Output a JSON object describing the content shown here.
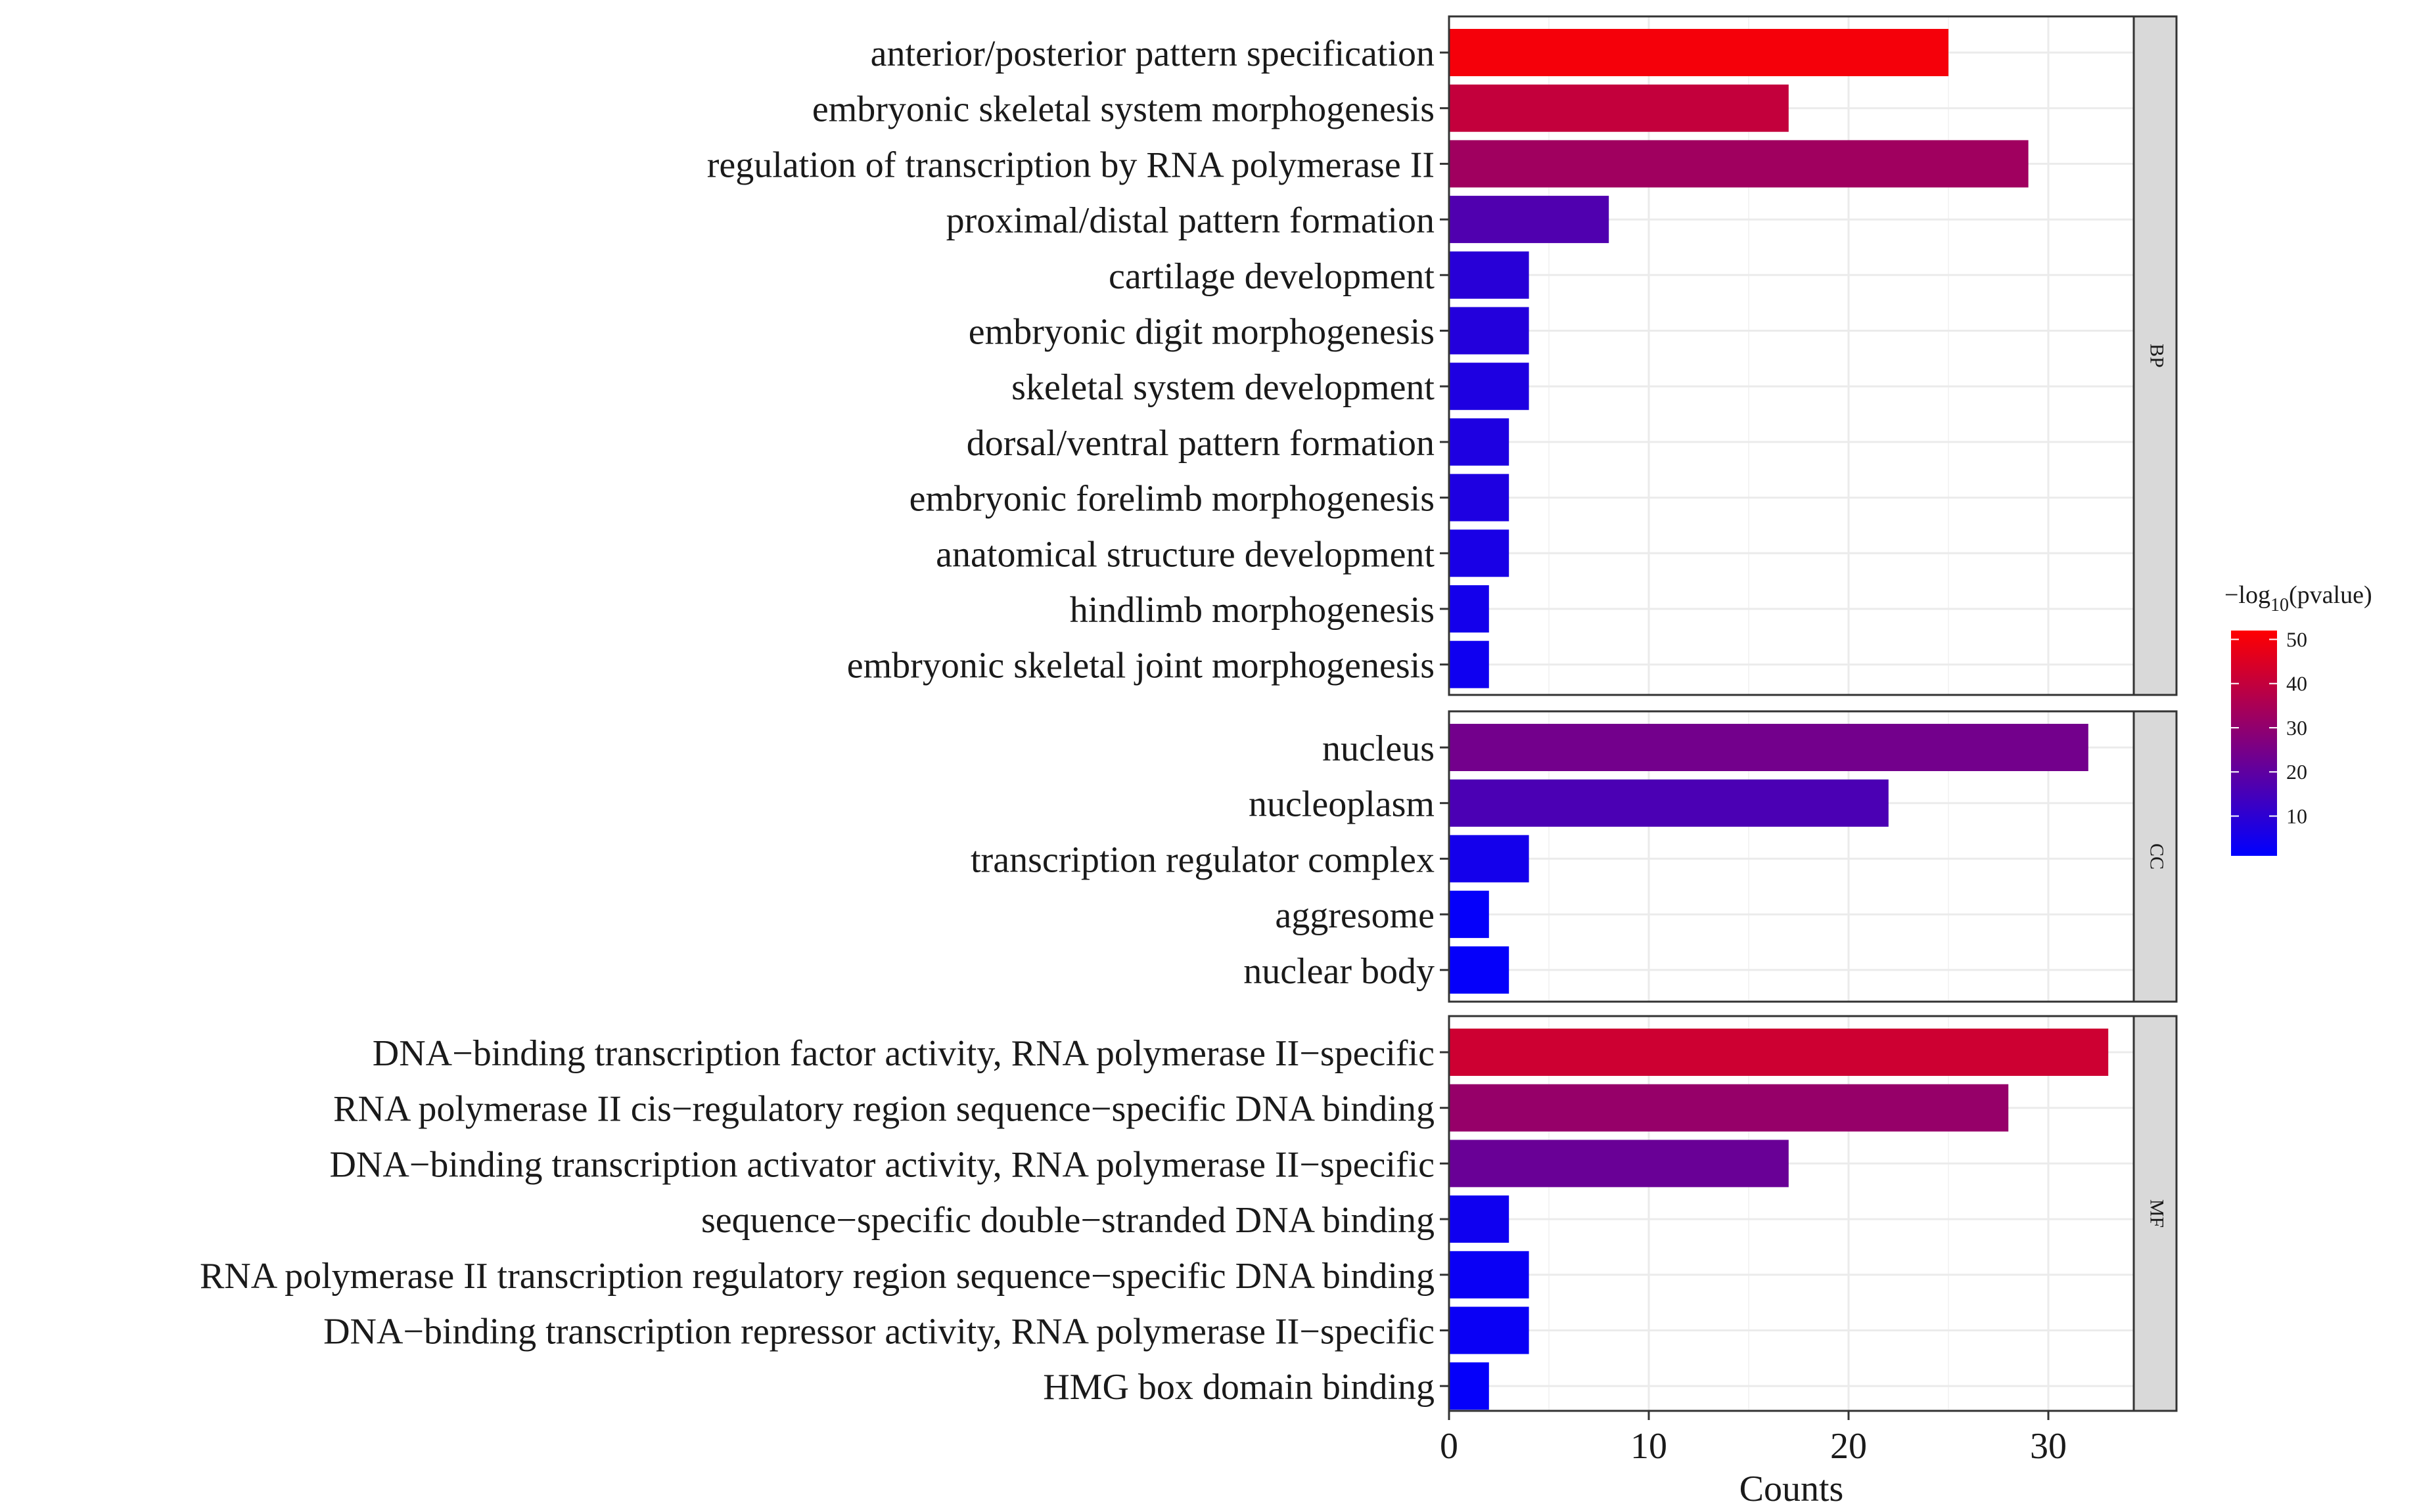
{
  "chart_data": {
    "type": "bar",
    "orientation": "horizontal",
    "xlabel": "Counts",
    "xlim": [
      0,
      35
    ],
    "x_ticks": [
      0,
      10,
      20,
      30
    ],
    "grid": true,
    "legend": {
      "title_prefix": "−log",
      "title_sub": "10",
      "title_suffix": "(pvalue)",
      "ticks": [
        10,
        20,
        30,
        40,
        50
      ],
      "range": [
        1,
        52
      ],
      "colors": [
        "#0000ff",
        "#ff0000"
      ],
      "position": "right"
    },
    "facets": [
      {
        "name": "BP",
        "terms": [
          {
            "term": "anterior/posterior pattern specification",
            "count": 25,
            "pvalue": 50
          },
          {
            "term": "embryonic skeletal system morphogenesis",
            "count": 17,
            "pvalue": 40
          },
          {
            "term": "regulation of transcription by RNA polymerase II",
            "count": 29,
            "pvalue": 33
          },
          {
            "term": "proximal/distal pattern formation",
            "count": 8,
            "pvalue": 17
          },
          {
            "term": "cartilage development",
            "count": 4,
            "pvalue": 9
          },
          {
            "term": "embryonic digit morphogenesis",
            "count": 4,
            "pvalue": 8
          },
          {
            "term": "skeletal system development",
            "count": 4,
            "pvalue": 7
          },
          {
            "term": "dorsal/ventral pattern formation",
            "count": 3,
            "pvalue": 7
          },
          {
            "term": "embryonic forelimb morphogenesis",
            "count": 3,
            "pvalue": 7
          },
          {
            "term": "anatomical structure development",
            "count": 3,
            "pvalue": 6
          },
          {
            "term": "hindlimb morphogenesis",
            "count": 2,
            "pvalue": 5
          },
          {
            "term": "embryonic skeletal joint morphogenesis",
            "count": 2,
            "pvalue": 4
          }
        ]
      },
      {
        "name": "CC",
        "terms": [
          {
            "term": "nucleus",
            "count": 32,
            "pvalue": 24
          },
          {
            "term": "nucleoplasm",
            "count": 22,
            "pvalue": 16
          },
          {
            "term": "transcription regulator complex",
            "count": 4,
            "pvalue": 5
          },
          {
            "term": "aggresome",
            "count": 2,
            "pvalue": 2
          },
          {
            "term": "nuclear body",
            "count": 3,
            "pvalue": 2
          }
        ]
      },
      {
        "name": "MF",
        "terms": [
          {
            "term": "DNA−binding transcription factor activity, RNA polymerase II−specific",
            "count": 33,
            "pvalue": 42
          },
          {
            "term": "RNA polymerase II cis−regulatory region sequence−specific DNA binding",
            "count": 28,
            "pvalue": 31
          },
          {
            "term": "DNA−binding transcription activator activity, RNA polymerase II−specific",
            "count": 17,
            "pvalue": 22
          },
          {
            "term": "sequence−specific double−stranded DNA binding",
            "count": 3,
            "pvalue": 4
          },
          {
            "term": "RNA polymerase II transcription regulatory region sequence−specific DNA binding",
            "count": 4,
            "pvalue": 3
          },
          {
            "term": "DNA−binding transcription repressor activity, RNA polymerase II−specific",
            "count": 4,
            "pvalue": 3
          },
          {
            "term": "HMG box domain binding",
            "count": 2,
            "pvalue": 2
          }
        ]
      }
    ]
  }
}
